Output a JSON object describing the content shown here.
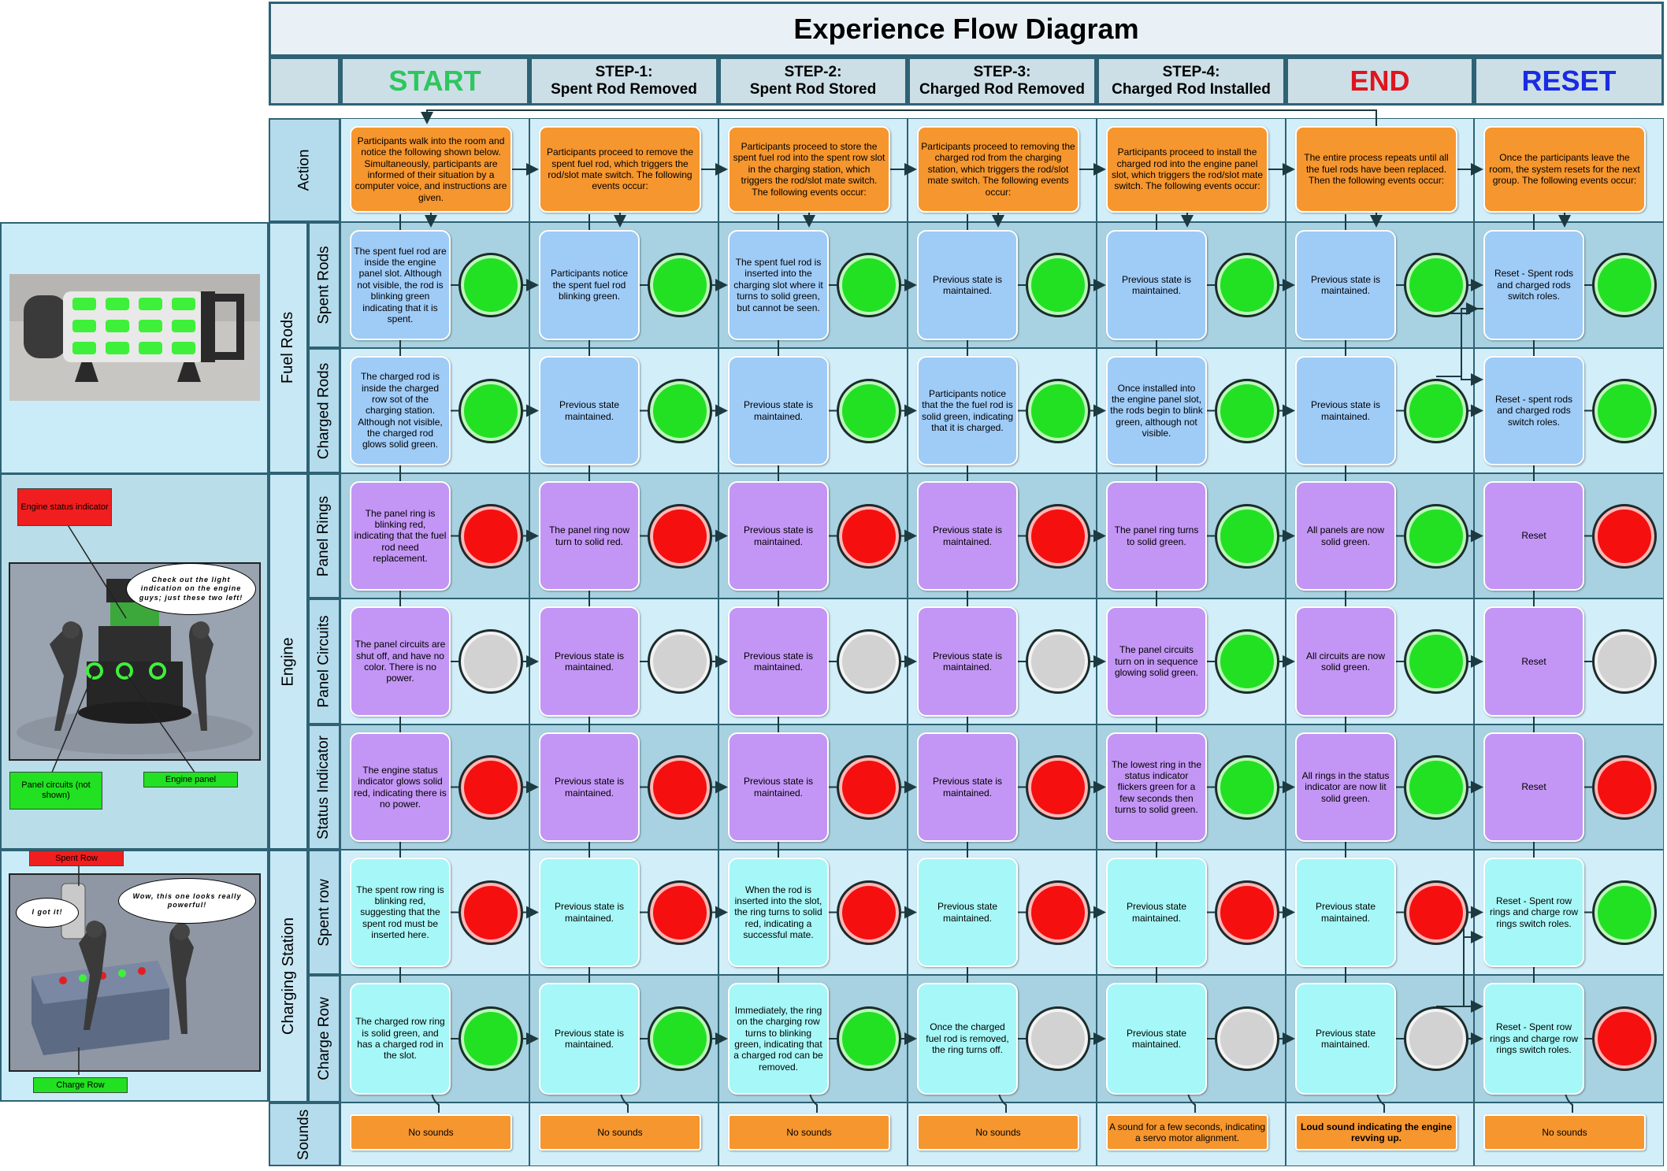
{
  "title": "Experience Flow Diagram",
  "columns": [
    {
      "line1": "START",
      "line2": "",
      "color": "#2ec65e"
    },
    {
      "line1": "STEP-1:",
      "line2": "Spent Rod Removed",
      "color": "#000000"
    },
    {
      "line1": "STEP-2:",
      "line2": "Spent Rod Stored",
      "color": "#000000"
    },
    {
      "line1": "STEP-3:",
      "line2": "Charged Rod Removed",
      "color": "#000000"
    },
    {
      "line1": "STEP-4:",
      "line2": "Charged Rod Installed",
      "color": "#000000"
    },
    {
      "line1": "END",
      "line2": "",
      "color": "#e0141e"
    },
    {
      "line1": "RESET",
      "line2": "",
      "color": "#1a2be0"
    }
  ],
  "groups": {
    "fuel": "Fuel Rods",
    "engine": "Engine",
    "charging": "Charging Station"
  },
  "rows": [
    {
      "label": "Action"
    },
    {
      "label": "Spent Rods"
    },
    {
      "label": "Charged Rods"
    },
    {
      "label": "Panel Rings"
    },
    {
      "label": "Panel Circuits"
    },
    {
      "label": "Status Indicator"
    },
    {
      "label": "Spent row"
    },
    {
      "label": "Charge Row"
    },
    {
      "label": "Sounds"
    }
  ],
  "actions": [
    "Participants walk into the room and notice the following shown below. Simultaneously, participants are informed of their situation by a computer voice, and instructions are given.",
    "Participants proceed to remove the spent fuel rod, which triggers the rod/slot mate switch. The following events occur:",
    "Participants proceed to store the spent fuel rod into the spent row slot in the charging station, which triggers the rod/slot mate switch. The following events occur:",
    "Participants proceed to removing the charged rod from the charging station, which triggers the rod/slot mate switch. The following events occur:",
    "Participants proceed to install the charged rod into the engine panel slot, which triggers the rod/slot mate switch. The following events occur:",
    "The entire process repeats until all the fuel rods have been replaced. Then the following events occur:",
    "Once the participants leave the room, the system resets for the next group. The following events occur:"
  ],
  "states": [
    [
      {
        "text": "The spent fuel rod are inside the engine panel slot. Although not visible, the rod is blinking green indicating that it is spent.",
        "light": "green"
      },
      {
        "text": "Participants notice the spent fuel rod blinking green.",
        "light": "green"
      },
      {
        "text": "The spent fuel rod is inserted into the charging slot where it turns to solid green, but cannot be seen.",
        "light": "green"
      },
      {
        "text": "Previous state is maintained.",
        "light": "green"
      },
      {
        "text": "Previous state is maintained.",
        "light": "green"
      },
      {
        "text": "Previous state is maintained.",
        "light": "green"
      },
      {
        "text": "Reset - Spent rods and charged rods switch roles.",
        "light": "green"
      }
    ],
    [
      {
        "text": "The charged rod is inside the charged row sot of the charging station. Although not visible, the charged rod glows solid green.",
        "light": "green"
      },
      {
        "text": "Previous state maintained.",
        "light": "green"
      },
      {
        "text": "Previous state is maintained.",
        "light": "green"
      },
      {
        "text": "Participants notice that the the fuel rod is solid green, indicating that it is charged.",
        "light": "green"
      },
      {
        "text": "Once installed into the engine panel slot, the rods begin to blink green, although not visible.",
        "light": "green"
      },
      {
        "text": "Previous state is maintained.",
        "light": "green"
      },
      {
        "text": "Reset - spent rods and charged rods switch roles.",
        "light": "green"
      }
    ],
    [
      {
        "text": "The panel ring is blinking red, indicating that the fuel rod need replacement.",
        "light": "red"
      },
      {
        "text": "The panel ring now turn to solid red.",
        "light": "red"
      },
      {
        "text": "Previous state is maintained.",
        "light": "red"
      },
      {
        "text": "Previous state is maintained.",
        "light": "red"
      },
      {
        "text": "The panel ring turns to solid green.",
        "light": "green"
      },
      {
        "text": "All panels are now solid green.",
        "light": "green"
      },
      {
        "text": "Reset",
        "light": "red"
      }
    ],
    [
      {
        "text": "The panel circuits are shut off, and have no color. There is no power.",
        "light": "grey"
      },
      {
        "text": "Previous state is maintained.",
        "light": "grey"
      },
      {
        "text": "Previous state is maintained.",
        "light": "grey"
      },
      {
        "text": "Previous state is maintained.",
        "light": "grey"
      },
      {
        "text": "The panel circuits turn on in sequence glowing solid green.",
        "light": "green"
      },
      {
        "text": "All circuits are now solid green.",
        "light": "green"
      },
      {
        "text": "Reset",
        "light": "grey"
      }
    ],
    [
      {
        "text": "The engine status indicator glows solid red, indicating there is no power.",
        "light": "red"
      },
      {
        "text": "Previous state is maintained.",
        "light": "red"
      },
      {
        "text": "Previous state is maintained.",
        "light": "red"
      },
      {
        "text": "Previous state is maintained.",
        "light": "red"
      },
      {
        "text": "The lowest ring in the status indicator flickers green for a few seconds then turns to solid green.",
        "light": "green"
      },
      {
        "text": "All rings in the status indicator are now lit solid green.",
        "light": "green"
      },
      {
        "text": "Reset",
        "light": "red"
      }
    ],
    [
      {
        "text": "The spent row ring is blinking red, suggesting that the spent rod must be inserted here.",
        "light": "red"
      },
      {
        "text": "Previous state is maintained.",
        "light": "red"
      },
      {
        "text": "When the rod is inserted into the slot, the ring turns to solid red, indicating a successful mate.",
        "light": "red"
      },
      {
        "text": "Previous state maintained.",
        "light": "red"
      },
      {
        "text": "Previous state maintained.",
        "light": "red"
      },
      {
        "text": "Previous state maintained.",
        "light": "red"
      },
      {
        "text": "Reset - Spent row rings and charge row rings switch roles.",
        "light": "green"
      }
    ],
    [
      {
        "text": "The charged row ring is solid green, and has a charged rod in the slot.",
        "light": "green"
      },
      {
        "text": "Previous state is maintained.",
        "light": "green"
      },
      {
        "text": "Immediately, the ring on the charging row turns to blinking green, indicating that a charged rod can be removed.",
        "light": "green"
      },
      {
        "text": "Once the charged fuel rod is removed, the ring turns off.",
        "light": "grey"
      },
      {
        "text": "Previous state maintained.",
        "light": "grey"
      },
      {
        "text": "Previous state maintained.",
        "light": "grey"
      },
      {
        "text": "Reset - Spent row rings and charge row rings switch roles.",
        "light": "red"
      }
    ]
  ],
  "sounds": [
    {
      "text": "No sounds",
      "bold": false
    },
    {
      "text": "No sounds",
      "bold": false
    },
    {
      "text": "No sounds",
      "bold": false
    },
    {
      "text": "No sounds",
      "bold": false
    },
    {
      "text": "A sound for a few seconds, indicating a servo motor alignment.",
      "bold": false
    },
    {
      "text": "Loud sound indicating the engine revving up.",
      "bold": true
    },
    {
      "text": "No sounds",
      "bold": false
    }
  ],
  "side": {
    "engine_callouts": {
      "status": "Engine status indicator",
      "circuits": "Panel circuits (not shown)",
      "panel": "Engine panel",
      "bubble": "Check out the light indication on the engine guys; just these two left!"
    },
    "charging_callouts": {
      "spent": "Spent Row",
      "charge": "Charge Row",
      "bubble1": "Wow, this one looks really powerful!",
      "bubble2": "I got it!"
    }
  },
  "colors": {
    "border": "#2e6274",
    "light_green": "#22e122",
    "light_red": "#f50f0f",
    "light_grey": "#d2d2d2",
    "state_blue": "#9fcbf7",
    "state_purple": "#c396f5",
    "state_cyan": "#a6f7f7",
    "action_orange": "#f6962e"
  }
}
